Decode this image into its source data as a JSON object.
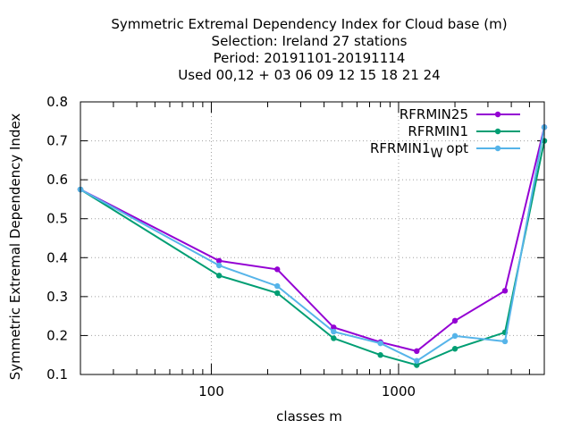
{
  "chart_data": {
    "type": "line",
    "title_lines": [
      "Symmetric Extremal Dependency Index  for Cloud base (m)",
      "Selection: Ireland      27 stations",
      "Period: 20191101-20191114",
      "Used  00,12  + 03 06 09 12 15 18 21 24"
    ],
    "xlabel": "classes m",
    "ylabel": "Symmetric Extremal Dependency Index",
    "xscale": "log",
    "xlim": [
      20,
      6000
    ],
    "ylim": [
      0.1,
      0.8
    ],
    "x_tick_labels": [
      "100",
      "1000"
    ],
    "y_tick_labels": [
      "0.1",
      "0.2",
      "0.3",
      "0.4",
      "0.5",
      "0.6",
      "0.7",
      "0.8"
    ],
    "grid": true,
    "legend_position": "top-right",
    "x": [
      20,
      110,
      225,
      450,
      800,
      1250,
      2000,
      3700,
      6000
    ],
    "series": [
      {
        "name": "RFRMIN25",
        "color": "#9400d3",
        "values": [
          0.575,
          0.392,
          0.37,
          0.221,
          0.183,
          0.16,
          0.238,
          0.315,
          0.735
        ]
      },
      {
        "name": "RFRMIN1",
        "color": "#009e73",
        "values": [
          0.575,
          0.354,
          0.309,
          0.193,
          0.15,
          0.124,
          0.166,
          0.208,
          0.7
        ]
      },
      {
        "name": "RFRMIN1",
        "name_subscript": "W",
        "name_suffix": "opt",
        "color": "#56b4e9",
        "values": [
          0.575,
          0.38,
          0.327,
          0.21,
          0.18,
          0.135,
          0.199,
          0.185,
          0.735
        ]
      }
    ]
  }
}
